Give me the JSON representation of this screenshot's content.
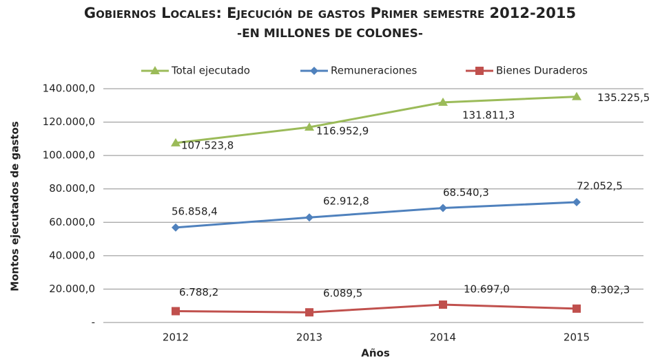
{
  "chart_data": {
    "type": "line",
    "title": "Gobiernos Locales: Ejecución de gastos Primer semestre 2012-2015",
    "subtitle": "-EN MILLONES DE COLONES-",
    "y_label": "Montos ejecutados de gastos",
    "x_label": "Años",
    "categories": [
      "2012",
      "2013",
      "2014",
      "2015"
    ],
    "series": [
      {
        "name": "Total ejecutado",
        "color": "#9bbb59",
        "marker": "triangle",
        "values": [
          107523.8,
          116952.9,
          131811.3,
          135225.5
        ],
        "value_labels": [
          "107.523,8",
          "116.952,9",
          "131.811,3",
          "135.225,5"
        ]
      },
      {
        "name": "Remuneraciones",
        "color": "#4f81bd",
        "marker": "diamond",
        "values": [
          56858.4,
          62912.8,
          68540.3,
          72052.5
        ],
        "value_labels": [
          "56.858,4",
          "62.912,8",
          "68.540,3",
          "72.052,5"
        ]
      },
      {
        "name": "Bienes Duraderos",
        "color": "#c0504d",
        "marker": "square",
        "values": [
          6788.2,
          6089.5,
          10697.0,
          8302.3
        ],
        "value_labels": [
          "6.788,2",
          "6.089,5",
          "10.697,0",
          "8.302,3"
        ]
      }
    ],
    "ylim": [
      0,
      140000
    ],
    "yticks": [
      {
        "value": 0,
        "label": "-"
      },
      {
        "value": 20000,
        "label": "20.000,0"
      },
      {
        "value": 40000,
        "label": "40.000,0"
      },
      {
        "value": 60000,
        "label": "60.000,0"
      },
      {
        "value": 80000,
        "label": "80.000,0"
      },
      {
        "value": 100000,
        "label": "100.000,0"
      },
      {
        "value": 120000,
        "label": "120.000,0"
      },
      {
        "value": 140000,
        "label": "140.000,0"
      }
    ],
    "grid": true,
    "legend": "top"
  }
}
